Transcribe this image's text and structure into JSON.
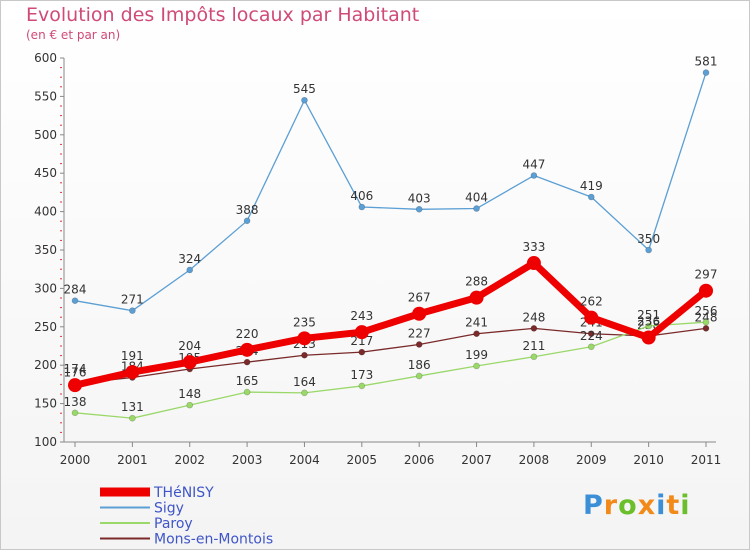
{
  "header": {
    "title": "Evolution des Impôts locaux par Habitant",
    "subtitle": "(en € et par an)"
  },
  "logo": {
    "text": "Proxiti"
  },
  "chart_data": {
    "type": "line",
    "title": "Evolution des Impôts locaux par Habitant",
    "subtitle": "(en € et par an)",
    "xlabel": "",
    "ylabel": "",
    "x": [
      2000,
      2001,
      2002,
      2003,
      2004,
      2005,
      2006,
      2007,
      2008,
      2009,
      2010,
      2011
    ],
    "ylim": [
      100,
      600
    ],
    "yticks": [
      100,
      150,
      200,
      250,
      300,
      350,
      400,
      450,
      500,
      550,
      600
    ],
    "grid": false,
    "legend_position": "bottom-left",
    "series": [
      {
        "name": "Mons-en-Montois",
        "color": "#7a2a2a",
        "values": [
          176,
          184,
          195,
          204,
          213,
          217,
          227,
          241,
          248,
          241,
          238,
          248
        ],
        "labels": [
          "176",
          "184",
          "195",
          "204",
          "213",
          "217",
          "227",
          "241",
          "248",
          "241",
          "238",
          "248"
        ]
      },
      {
        "name": "Paroy",
        "color": "#9ad86a",
        "values": [
          138,
          131,
          148,
          165,
          164,
          173,
          186,
          199,
          211,
          224,
          251,
          256
        ],
        "labels": [
          "138",
          "131",
          "148",
          "165",
          "164",
          "173",
          "186",
          "199",
          "211",
          "224",
          "251",
          "256"
        ]
      },
      {
        "name": "Sigy",
        "color": "#5b9fd4",
        "values": [
          284,
          271,
          324,
          388,
          545,
          406,
          403,
          404,
          447,
          419,
          350,
          581
        ],
        "labels": [
          "284",
          "271",
          "324",
          "388",
          "545",
          "406",
          "403",
          "404",
          "447",
          "419",
          "350",
          "581"
        ]
      },
      {
        "name": "THéNISY",
        "color": "#ee0000",
        "values": [
          174,
          191,
          204,
          220,
          235,
          243,
          267,
          288,
          333,
          262,
          236,
          297
        ],
        "labels": [
          "174",
          "191",
          "204",
          "220",
          "235",
          "243",
          "267",
          "288",
          "333",
          "262",
          "236",
          "297"
        ]
      }
    ],
    "legend_order": [
      "THéNISY",
      "Sigy",
      "Paroy",
      "Mons-en-Montois"
    ]
  }
}
